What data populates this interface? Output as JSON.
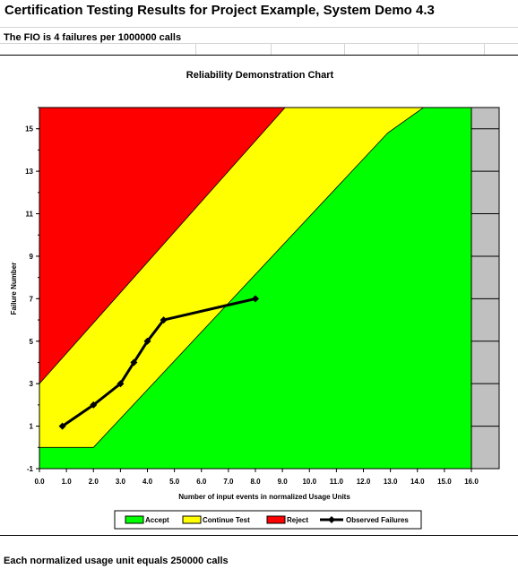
{
  "sheet": {
    "title": "Certification Testing Results for Project Example, System Demo 4.3",
    "fio_line": "The FIO is 4 failures per 1000000 calls",
    "footer": "Each normalized usage unit equals 250000 calls"
  },
  "chart_data": {
    "type": "line",
    "title": "Reliability Demonstration Chart",
    "xlabel": "Number of input events in normalized Usage Units",
    "ylabel": "Failure Number",
    "xlim": [
      0,
      16
    ],
    "ylim": [
      -1,
      16
    ],
    "x_ticks": [
      "0.0",
      "1.0",
      "2.0",
      "3.0",
      "4.0",
      "5.0",
      "6.0",
      "7.0",
      "8.0",
      "9.0",
      "10.0",
      "11.0",
      "12.0",
      "13.0",
      "14.0",
      "15.0",
      "16.0"
    ],
    "y_ticks": [
      "-1",
      "1",
      "3",
      "5",
      "7",
      "9",
      "11",
      "13",
      "15"
    ],
    "legend_placement": "bottom",
    "regions": [
      {
        "name": "Accept",
        "color": "#00ff00"
      },
      {
        "name": "Continue Test",
        "color": "#ffff00"
      },
      {
        "name": "Reject",
        "color": "#ff0000"
      }
    ],
    "reject_boundary": {
      "x": [
        0,
        9.1
      ],
      "y": [
        3,
        16
      ]
    },
    "accept_boundary": {
      "x": [
        0,
        2,
        12.9
      ],
      "y": [
        0,
        0,
        14.8
      ]
    },
    "series": [
      {
        "name": "Observed Failures",
        "color": "#000000",
        "x": [
          0.85,
          2.0,
          3.0,
          3.5,
          4.0,
          4.6,
          8.0
        ],
        "y": [
          1,
          2,
          3,
          4,
          5,
          6,
          7
        ]
      }
    ]
  }
}
